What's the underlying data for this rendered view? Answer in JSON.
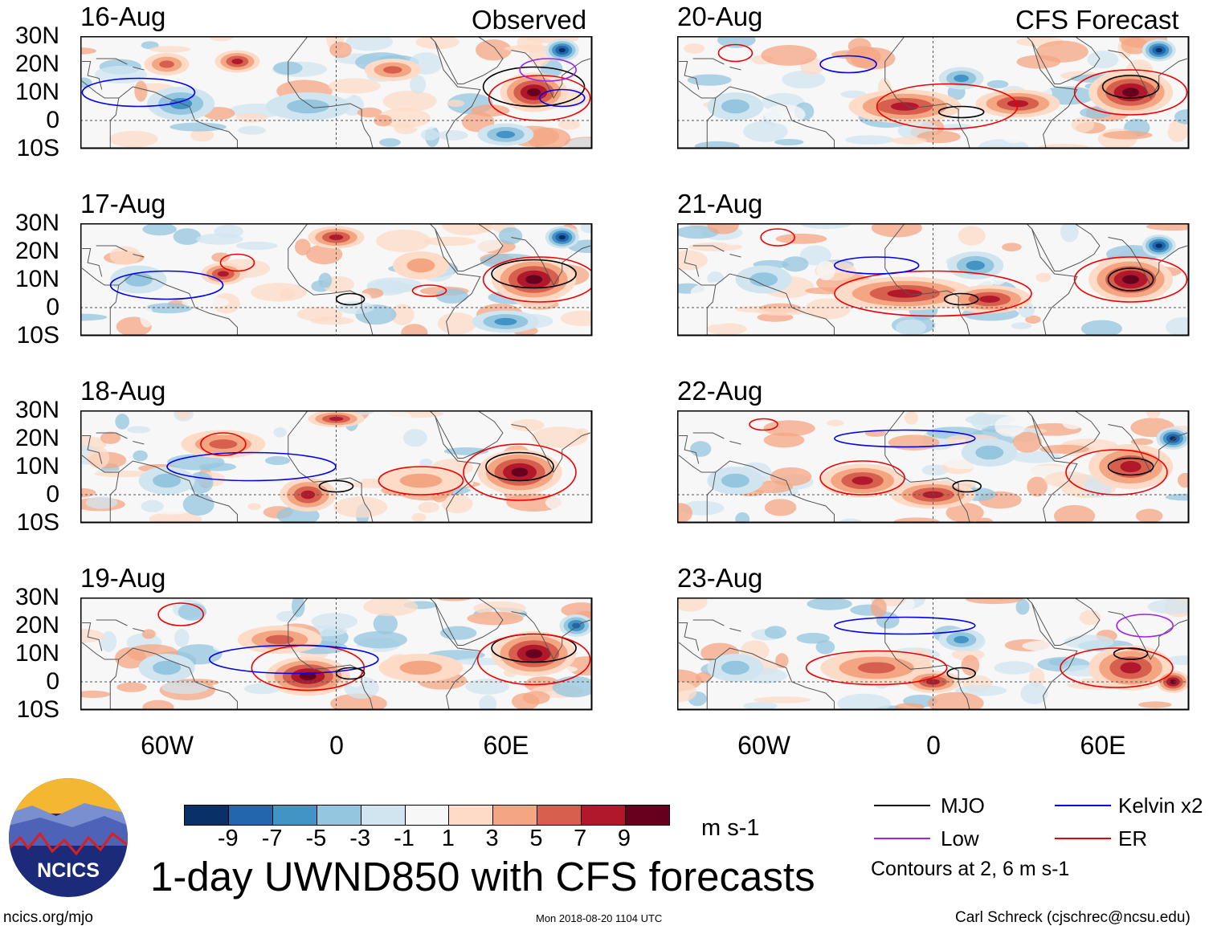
{
  "titles": {
    "left": "Observed",
    "right": "CFS Forecast"
  },
  "panels": [
    {
      "date": "16-Aug",
      "column": "left"
    },
    {
      "date": "17-Aug",
      "column": "left"
    },
    {
      "date": "18-Aug",
      "column": "left"
    },
    {
      "date": "19-Aug",
      "column": "left"
    },
    {
      "date": "20-Aug",
      "column": "right"
    },
    {
      "date": "21-Aug",
      "column": "right"
    },
    {
      "date": "22-Aug",
      "column": "right"
    },
    {
      "date": "23-Aug",
      "column": "right"
    }
  ],
  "lat_labels": [
    "30N",
    "20N",
    "10N",
    "0",
    "10S"
  ],
  "lon_labels": [
    "60W",
    "0",
    "60E"
  ],
  "colorbar": {
    "colors": [
      "#0a3068",
      "#2266ae",
      "#4294c6",
      "#94c6df",
      "#d1e5f0",
      "#f7f7f7",
      "#fddbc7",
      "#f4a582",
      "#d6604d",
      "#b2182b",
      "#67001f"
    ],
    "labels": [
      "-9",
      "-7",
      "-5",
      "-3",
      "-1",
      "1",
      "3",
      "5",
      "7",
      "9"
    ],
    "units": "m s-1"
  },
  "legend": {
    "items": [
      {
        "label": "MJO",
        "color": "#000000"
      },
      {
        "label": "Kelvin x2",
        "color": "#0000ee"
      },
      {
        "label": "Low",
        "color": "#a020f0"
      },
      {
        "label": "ER",
        "color": "#ee0000"
      }
    ],
    "note": "Contours at 2, 6 m s-1"
  },
  "main_title": "1-day UWND850 with CFS forecasts",
  "logo_text": "NCICS",
  "footer": {
    "left": "ncics.org/mjo",
    "center": "Mon 2018-08-20 1104 UTC",
    "right": "Carl Schreck (cjschrec@ncsu.edu)"
  },
  "chart_data": {
    "type": "heatmap",
    "variable": "850-hPa zonal wind anomaly",
    "units": "m s-1",
    "lon_range": [
      -90,
      90
    ],
    "lat_range": [
      -10,
      30
    ],
    "panels": [
      {
        "date": "16-Aug",
        "anomalies": [
          [
            -60,
            20,
            8,
            4,
            5
          ],
          [
            -35,
            21,
            8,
            4,
            7
          ],
          [
            -55,
            6,
            12,
            6,
            -5
          ],
          [
            70,
            10,
            12,
            7,
            9
          ],
          [
            80,
            25,
            6,
            4,
            -9
          ],
          [
            20,
            18,
            10,
            4,
            5
          ],
          [
            -10,
            5,
            15,
            5,
            -3
          ],
          [
            60,
            -5,
            10,
            4,
            -5
          ]
        ],
        "contours": [
          [
            "mjo",
            70,
            12,
            18,
            7
          ],
          [
            "kelvin",
            -70,
            10,
            20,
            5
          ],
          [
            "er",
            72,
            8,
            18,
            8
          ],
          [
            "kelvin",
            80,
            8,
            8,
            3
          ],
          [
            "low",
            75,
            18,
            10,
            4
          ]
        ]
      },
      {
        "date": "17-Aug",
        "anomalies": [
          [
            -40,
            12,
            8,
            4,
            7
          ],
          [
            0,
            25,
            10,
            4,
            7
          ],
          [
            70,
            10,
            15,
            8,
            9
          ],
          [
            80,
            25,
            6,
            4,
            -9
          ],
          [
            -70,
            10,
            10,
            5,
            -3
          ],
          [
            60,
            -5,
            12,
            4,
            -5
          ],
          [
            30,
            15,
            10,
            5,
            3
          ]
        ],
        "contours": [
          [
            "mjo",
            70,
            12,
            15,
            5
          ],
          [
            "er",
            72,
            10,
            20,
            8
          ],
          [
            "er",
            -35,
            16,
            6,
            3
          ],
          [
            "kelvin",
            -60,
            8,
            20,
            5
          ],
          [
            "mjo",
            5,
            3,
            5,
            2
          ],
          [
            "er",
            33,
            6,
            6,
            2
          ]
        ]
      },
      {
        "date": "18-Aug",
        "anomalies": [
          [
            -40,
            18,
            15,
            5,
            5
          ],
          [
            -10,
            0,
            10,
            6,
            7
          ],
          [
            65,
            8,
            15,
            8,
            9
          ],
          [
            0,
            27,
            10,
            3,
            7
          ],
          [
            -60,
            5,
            10,
            5,
            -3
          ],
          [
            30,
            5,
            15,
            5,
            3
          ]
        ],
        "contours": [
          [
            "mjo",
            65,
            10,
            12,
            5
          ],
          [
            "er",
            65,
            8,
            20,
            10
          ],
          [
            "er",
            -40,
            18,
            8,
            4
          ],
          [
            "kelvin",
            -30,
            10,
            30,
            5
          ],
          [
            "mjo",
            0,
            3,
            6,
            2
          ],
          [
            "er",
            30,
            5,
            15,
            5
          ]
        ]
      },
      {
        "date": "19-Aug",
        "anomalies": [
          [
            -10,
            2,
            15,
            7,
            9
          ],
          [
            -20,
            15,
            15,
            5,
            5
          ],
          [
            70,
            10,
            15,
            8,
            9
          ],
          [
            85,
            20,
            6,
            4,
            -7
          ],
          [
            -60,
            5,
            10,
            5,
            -3
          ],
          [
            30,
            5,
            15,
            5,
            3
          ]
        ],
        "contours": [
          [
            "mjo",
            70,
            12,
            15,
            5
          ],
          [
            "er",
            -55,
            24,
            8,
            4
          ],
          [
            "er",
            -10,
            5,
            20,
            8
          ],
          [
            "kelvin",
            -15,
            8,
            30,
            5
          ],
          [
            "er",
            70,
            8,
            20,
            9
          ],
          [
            "mjo",
            5,
            3,
            5,
            2
          ]
        ]
      },
      {
        "date": "20-Aug",
        "anomalies": [
          [
            -10,
            5,
            20,
            6,
            7
          ],
          [
            30,
            6,
            15,
            5,
            7
          ],
          [
            70,
            10,
            15,
            8,
            9
          ],
          [
            80,
            25,
            6,
            4,
            -9
          ],
          [
            -70,
            5,
            10,
            5,
            -3
          ],
          [
            10,
            15,
            8,
            4,
            -5
          ]
        ],
        "contours": [
          [
            "er",
            -70,
            24,
            6,
            3
          ],
          [
            "kelvin",
            -30,
            20,
            10,
            3
          ],
          [
            "er",
            5,
            5,
            25,
            8
          ],
          [
            "mjo",
            10,
            3,
            8,
            2
          ],
          [
            "er",
            70,
            10,
            20,
            8
          ],
          [
            "mjo",
            70,
            12,
            10,
            4
          ]
        ]
      },
      {
        "date": "21-Aug",
        "anomalies": [
          [
            -10,
            5,
            25,
            6,
            7
          ],
          [
            20,
            3,
            15,
            5,
            7
          ],
          [
            70,
            10,
            15,
            8,
            9
          ],
          [
            80,
            22,
            6,
            4,
            -9
          ],
          [
            -60,
            10,
            10,
            5,
            -3
          ],
          [
            15,
            15,
            10,
            5,
            -5
          ]
        ],
        "contours": [
          [
            "er",
            -55,
            25,
            6,
            3
          ],
          [
            "er",
            0,
            5,
            35,
            8
          ],
          [
            "mjo",
            10,
            3,
            6,
            2
          ],
          [
            "er",
            70,
            10,
            20,
            8
          ],
          [
            "mjo",
            70,
            10,
            8,
            4
          ],
          [
            "kelvin",
            -20,
            15,
            15,
            3
          ]
        ]
      },
      {
        "date": "22-Aug",
        "anomalies": [
          [
            -25,
            5,
            15,
            6,
            7
          ],
          [
            0,
            0,
            15,
            5,
            7
          ],
          [
            70,
            10,
            15,
            8,
            7
          ],
          [
            85,
            20,
            6,
            4,
            -9
          ],
          [
            -70,
            5,
            10,
            5,
            -3
          ],
          [
            20,
            15,
            10,
            5,
            -3
          ]
        ],
        "contours": [
          [
            "er",
            -25,
            6,
            15,
            6
          ],
          [
            "er",
            -60,
            25,
            5,
            2
          ],
          [
            "er",
            65,
            8,
            18,
            8
          ],
          [
            "mjo",
            70,
            10,
            8,
            3
          ],
          [
            "kelvin",
            -10,
            20,
            25,
            3
          ],
          [
            "mjo",
            12,
            3,
            5,
            2
          ]
        ]
      },
      {
        "date": "23-Aug",
        "anomalies": [
          [
            -20,
            5,
            20,
            6,
            5
          ],
          [
            0,
            0,
            10,
            4,
            7
          ],
          [
            70,
            5,
            15,
            8,
            7
          ],
          [
            85,
            0,
            6,
            4,
            9
          ],
          [
            -70,
            5,
            10,
            5,
            -3
          ],
          [
            10,
            15,
            8,
            4,
            -5
          ]
        ],
        "contours": [
          [
            "er",
            -20,
            5,
            25,
            6
          ],
          [
            "er",
            65,
            5,
            20,
            7
          ],
          [
            "mjo",
            70,
            10,
            6,
            2
          ],
          [
            "kelvin",
            -10,
            20,
            25,
            3
          ],
          [
            "mjo",
            10,
            3,
            5,
            2
          ],
          [
            "low",
            75,
            20,
            10,
            4
          ]
        ]
      }
    ]
  }
}
